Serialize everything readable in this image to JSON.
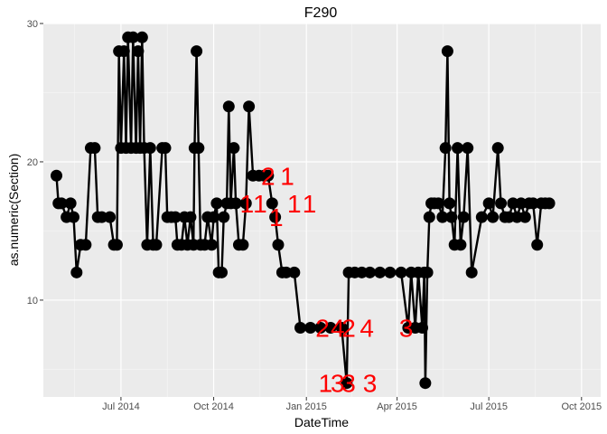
{
  "chart_data": {
    "type": "line",
    "title": "F290",
    "xlabel": "DateTime",
    "ylabel": "as.numeric(Section)",
    "xlim": [
      "2014-04-15",
      "2015-10-20"
    ],
    "ylim": [
      3,
      30
    ],
    "grid": true,
    "x_ticks": [
      {
        "date": "2014-07-01",
        "label": "Jul 2014"
      },
      {
        "date": "2014-10-01",
        "label": "Oct 2014"
      },
      {
        "date": "2015-01-01",
        "label": "Jan 2015"
      },
      {
        "date": "2015-04-01",
        "label": "Apr 2015"
      },
      {
        "date": "2015-07-01",
        "label": "Jul 2015"
      },
      {
        "date": "2015-10-01",
        "label": "Oct 2015"
      }
    ],
    "y_ticks": [
      {
        "value": 10,
        "label": "10"
      },
      {
        "value": 20,
        "label": "20"
      },
      {
        "value": 30,
        "label": "30"
      }
    ],
    "series": [
      {
        "color": "#000000",
        "points": [
          [
            "2014-04-28",
            19
          ],
          [
            "2014-04-30",
            17
          ],
          [
            "2014-05-03",
            17
          ],
          [
            "2014-05-08",
            16
          ],
          [
            "2014-05-12",
            17
          ],
          [
            "2014-05-15",
            16
          ],
          [
            "2014-05-18",
            12
          ],
          [
            "2014-05-22",
            14
          ],
          [
            "2014-05-27",
            14
          ],
          [
            "2014-06-01",
            21
          ],
          [
            "2014-06-05",
            21
          ],
          [
            "2014-06-08",
            16
          ],
          [
            "2014-06-12",
            16
          ],
          [
            "2014-06-20",
            16
          ],
          [
            "2014-06-24",
            14
          ],
          [
            "2014-06-27",
            14
          ],
          [
            "2014-06-29",
            28
          ],
          [
            "2014-07-01",
            21
          ],
          [
            "2014-07-04",
            28
          ],
          [
            "2014-07-06",
            21
          ],
          [
            "2014-07-08",
            29
          ],
          [
            "2014-07-11",
            21
          ],
          [
            "2014-07-13",
            29
          ],
          [
            "2014-07-16",
            21
          ],
          [
            "2014-07-18",
            28
          ],
          [
            "2014-07-20",
            21
          ],
          [
            "2014-07-22",
            29
          ],
          [
            "2014-07-24",
            21
          ],
          [
            "2014-07-27",
            14
          ],
          [
            "2014-07-30",
            21
          ],
          [
            "2014-08-02",
            14
          ],
          [
            "2014-08-05",
            14
          ],
          [
            "2014-08-11",
            21
          ],
          [
            "2014-08-14",
            21
          ],
          [
            "2014-08-16",
            16
          ],
          [
            "2014-08-20",
            16
          ],
          [
            "2014-08-24",
            16
          ],
          [
            "2014-08-26",
            14
          ],
          [
            "2014-08-30",
            14
          ],
          [
            "2014-09-02",
            16
          ],
          [
            "2014-09-05",
            14
          ],
          [
            "2014-09-08",
            16
          ],
          [
            "2014-09-11",
            14
          ],
          [
            "2014-09-12",
            21
          ],
          [
            "2014-09-14",
            28
          ],
          [
            "2014-09-16",
            21
          ],
          [
            "2014-09-18",
            14
          ],
          [
            "2014-09-22",
            14
          ],
          [
            "2014-09-25",
            16
          ],
          [
            "2014-09-29",
            14
          ],
          [
            "2014-10-01",
            16
          ],
          [
            "2014-10-04",
            17
          ],
          [
            "2014-10-06",
            12
          ],
          [
            "2014-10-09",
            12
          ],
          [
            "2014-10-11",
            16
          ],
          [
            "2014-10-14",
            17
          ],
          [
            "2014-10-16",
            24
          ],
          [
            "2014-10-18",
            17
          ],
          [
            "2014-10-21",
            21
          ],
          [
            "2014-10-23",
            17
          ],
          [
            "2014-10-26",
            14
          ],
          [
            "2014-10-30",
            14
          ],
          [
            "2014-11-02",
            17
          ],
          [
            "2014-11-05",
            24
          ],
          [
            "2014-11-09",
            19
          ],
          [
            "2014-11-15",
            19
          ],
          [
            "2014-11-20",
            19
          ],
          [
            "2014-11-24",
            19
          ],
          [
            "2014-11-28",
            17
          ],
          [
            "2014-12-01",
            16
          ],
          [
            "2014-12-04",
            14
          ],
          [
            "2014-12-08",
            12
          ],
          [
            "2014-12-12",
            12
          ],
          [
            "2014-12-20",
            12
          ],
          [
            "2014-12-26",
            8
          ],
          [
            "2015-01-05",
            8
          ],
          [
            "2015-01-15",
            8
          ],
          [
            "2015-01-25",
            8
          ],
          [
            "2015-02-05",
            8
          ],
          [
            "2015-02-10",
            4
          ],
          [
            "2015-02-12",
            12
          ],
          [
            "2015-02-18",
            12
          ],
          [
            "2015-02-25",
            12
          ],
          [
            "2015-03-05",
            12
          ],
          [
            "2015-03-15",
            12
          ],
          [
            "2015-03-25",
            12
          ],
          [
            "2015-04-05",
            12
          ],
          [
            "2015-04-12",
            8
          ],
          [
            "2015-04-15",
            12
          ],
          [
            "2015-04-19",
            8
          ],
          [
            "2015-04-22",
            12
          ],
          [
            "2015-04-26",
            8
          ],
          [
            "2015-04-28",
            12
          ],
          [
            "2015-04-29",
            4
          ],
          [
            "2015-05-01",
            12
          ],
          [
            "2015-05-03",
            16
          ],
          [
            "2015-05-05",
            17
          ],
          [
            "2015-05-08",
            17
          ],
          [
            "2015-05-12",
            17
          ],
          [
            "2015-05-16",
            16
          ],
          [
            "2015-05-19",
            21
          ],
          [
            "2015-05-21",
            28
          ],
          [
            "2015-05-23",
            17
          ],
          [
            "2015-05-25",
            16
          ],
          [
            "2015-05-28",
            14
          ],
          [
            "2015-05-31",
            21
          ],
          [
            "2015-06-03",
            14
          ],
          [
            "2015-06-06",
            16
          ],
          [
            "2015-06-10",
            21
          ],
          [
            "2015-06-14",
            12
          ],
          [
            "2015-06-24",
            16
          ],
          [
            "2015-07-01",
            17
          ],
          [
            "2015-07-05",
            16
          ],
          [
            "2015-07-10",
            21
          ],
          [
            "2015-07-13",
            17
          ],
          [
            "2015-07-17",
            16
          ],
          [
            "2015-07-21",
            16
          ],
          [
            "2015-07-25",
            17
          ],
          [
            "2015-07-29",
            16
          ],
          [
            "2015-08-02",
            17
          ],
          [
            "2015-08-06",
            16
          ],
          [
            "2015-08-10",
            17
          ],
          [
            "2015-08-14",
            17
          ],
          [
            "2015-08-18",
            14
          ],
          [
            "2015-08-22",
            17
          ],
          [
            "2015-08-26",
            17
          ],
          [
            "2015-08-30",
            17
          ]
        ]
      }
    ],
    "annotations": [
      {
        "x": "2014-11-03",
        "y": 17,
        "text": "1"
      },
      {
        "x": "2014-11-16",
        "y": 17,
        "text": "1"
      },
      {
        "x": "2014-11-24",
        "y": 19,
        "text": "2"
      },
      {
        "x": "2014-12-02",
        "y": 16,
        "text": "1"
      },
      {
        "x": "2014-12-13",
        "y": 19,
        "text": "1"
      },
      {
        "x": "2014-12-20",
        "y": 17,
        "text": "1"
      },
      {
        "x": "2015-01-04",
        "y": 17,
        "text": "1"
      },
      {
        "x": "2015-01-17",
        "y": 8,
        "text": "2"
      },
      {
        "x": "2015-02-01",
        "y": 8,
        "text": "4"
      },
      {
        "x": "2015-02-12",
        "y": 8,
        "text": "2"
      },
      {
        "x": "2015-03-02",
        "y": 8,
        "text": "4"
      },
      {
        "x": "2015-04-10",
        "y": 8,
        "text": "3"
      },
      {
        "x": "2015-01-20",
        "y": 4,
        "text": "1"
      },
      {
        "x": "2015-02-01",
        "y": 4,
        "text": "3"
      },
      {
        "x": "2015-02-12",
        "y": 4,
        "text": "3"
      },
      {
        "x": "2015-03-05",
        "y": 4,
        "text": "3"
      }
    ]
  }
}
